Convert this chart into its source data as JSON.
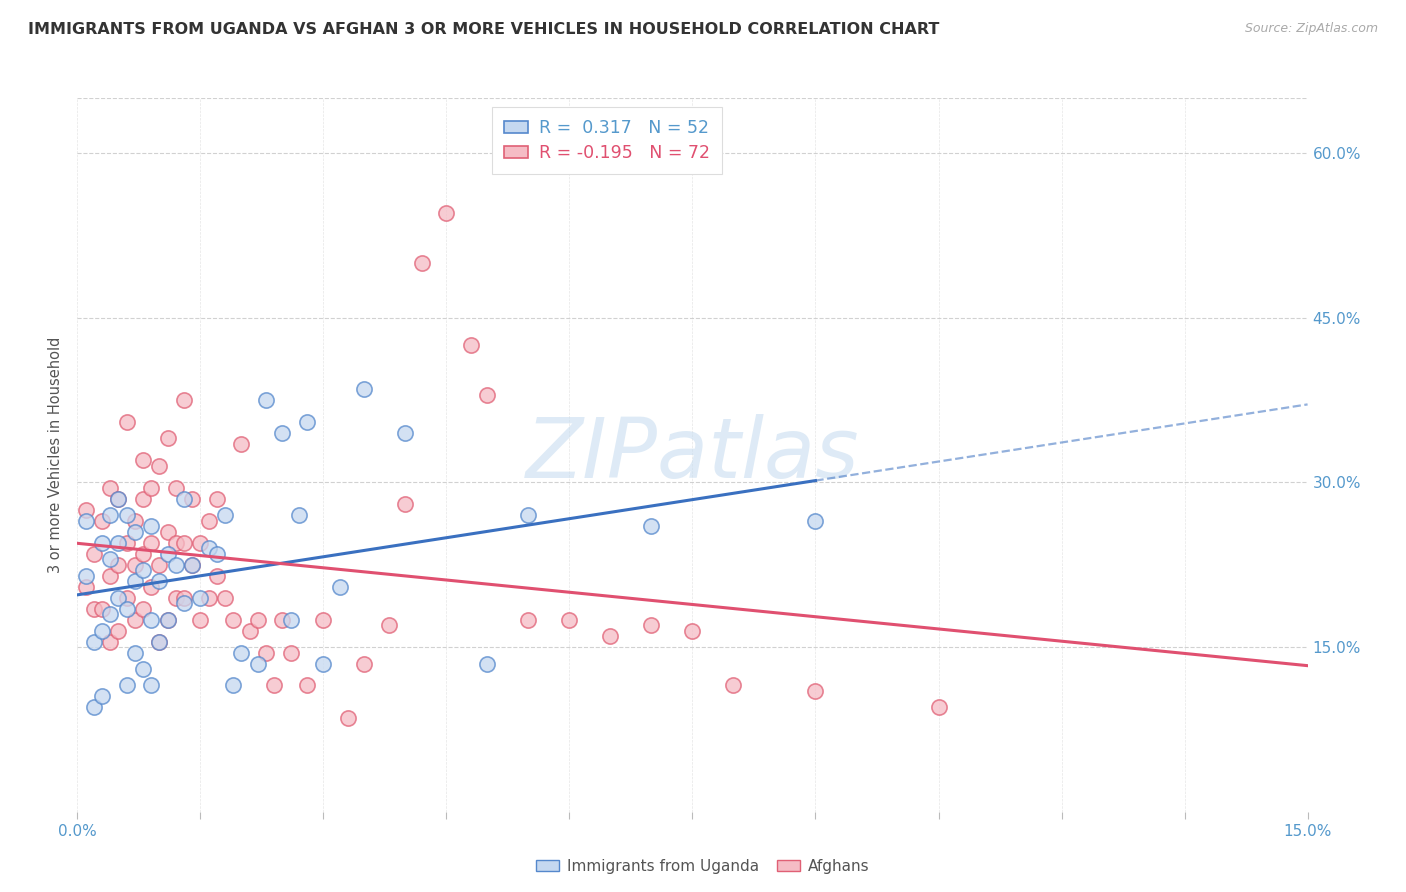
{
  "title": "IMMIGRANTS FROM UGANDA VS AFGHAN 3 OR MORE VEHICLES IN HOUSEHOLD CORRELATION CHART",
  "source": "Source: ZipAtlas.com",
  "ylabel": "3 or more Vehicles in Household",
  "yticks": [
    0.15,
    0.3,
    0.45,
    0.6
  ],
  "ytick_labels": [
    "15.0%",
    "30.0%",
    "45.0%",
    "60.0%"
  ],
  "xlim": [
    0.0,
    0.15
  ],
  "ylim": [
    0.0,
    0.65
  ],
  "r_uganda": "0.317",
  "n_uganda": "52",
  "r_afghan": "-0.195",
  "n_afghan": "72",
  "color_uganda_fill": "#c5d8f0",
  "color_uganda_edge": "#5588cc",
  "color_afghan_fill": "#f5bcc5",
  "color_afghan_edge": "#e06075",
  "line_color_uganda": "#3a70c0",
  "line_color_afghan": "#e05070",
  "axis_tick_color": "#5599cc",
  "title_color": "#333333",
  "source_color": "#aaaaaa",
  "grid_color": "#cccccc",
  "watermark_color": "#c8ddf0",
  "background_color": "#ffffff",
  "legend_label_uganda": "Immigrants from Uganda",
  "legend_label_afghan": "Afghans",
  "scatter_uganda_x": [
    0.001,
    0.001,
    0.002,
    0.002,
    0.003,
    0.003,
    0.003,
    0.004,
    0.004,
    0.004,
    0.005,
    0.005,
    0.005,
    0.006,
    0.006,
    0.006,
    0.007,
    0.007,
    0.007,
    0.008,
    0.008,
    0.009,
    0.009,
    0.009,
    0.01,
    0.01,
    0.011,
    0.011,
    0.012,
    0.013,
    0.013,
    0.014,
    0.015,
    0.016,
    0.017,
    0.018,
    0.019,
    0.02,
    0.022,
    0.023,
    0.025,
    0.026,
    0.027,
    0.028,
    0.03,
    0.032,
    0.035,
    0.04,
    0.05,
    0.055,
    0.07,
    0.09
  ],
  "scatter_uganda_y": [
    0.215,
    0.265,
    0.095,
    0.155,
    0.105,
    0.165,
    0.245,
    0.18,
    0.23,
    0.27,
    0.195,
    0.245,
    0.285,
    0.115,
    0.185,
    0.27,
    0.145,
    0.21,
    0.255,
    0.13,
    0.22,
    0.115,
    0.175,
    0.26,
    0.155,
    0.21,
    0.175,
    0.235,
    0.225,
    0.19,
    0.285,
    0.225,
    0.195,
    0.24,
    0.235,
    0.27,
    0.115,
    0.145,
    0.135,
    0.375,
    0.345,
    0.175,
    0.27,
    0.355,
    0.135,
    0.205,
    0.385,
    0.345,
    0.135,
    0.27,
    0.26,
    0.265
  ],
  "scatter_afghan_x": [
    0.001,
    0.001,
    0.002,
    0.002,
    0.003,
    0.003,
    0.004,
    0.004,
    0.004,
    0.005,
    0.005,
    0.005,
    0.006,
    0.006,
    0.006,
    0.007,
    0.007,
    0.007,
    0.008,
    0.008,
    0.008,
    0.008,
    0.009,
    0.009,
    0.009,
    0.01,
    0.01,
    0.01,
    0.011,
    0.011,
    0.011,
    0.012,
    0.012,
    0.012,
    0.013,
    0.013,
    0.013,
    0.014,
    0.014,
    0.015,
    0.015,
    0.016,
    0.016,
    0.017,
    0.017,
    0.018,
    0.019,
    0.02,
    0.021,
    0.022,
    0.023,
    0.024,
    0.025,
    0.026,
    0.028,
    0.03,
    0.033,
    0.035,
    0.038,
    0.04,
    0.042,
    0.045,
    0.048,
    0.05,
    0.055,
    0.06,
    0.065,
    0.07,
    0.075,
    0.08,
    0.09,
    0.105
  ],
  "scatter_afghan_y": [
    0.205,
    0.275,
    0.185,
    0.235,
    0.185,
    0.265,
    0.155,
    0.215,
    0.295,
    0.165,
    0.225,
    0.285,
    0.195,
    0.245,
    0.355,
    0.175,
    0.225,
    0.265,
    0.185,
    0.235,
    0.285,
    0.32,
    0.205,
    0.245,
    0.295,
    0.155,
    0.225,
    0.315,
    0.175,
    0.255,
    0.34,
    0.195,
    0.245,
    0.295,
    0.195,
    0.245,
    0.375,
    0.225,
    0.285,
    0.175,
    0.245,
    0.195,
    0.265,
    0.215,
    0.285,
    0.195,
    0.175,
    0.335,
    0.165,
    0.175,
    0.145,
    0.115,
    0.175,
    0.145,
    0.115,
    0.175,
    0.085,
    0.135,
    0.17,
    0.28,
    0.5,
    0.545,
    0.425,
    0.38,
    0.175,
    0.175,
    0.16,
    0.17,
    0.165,
    0.115,
    0.11,
    0.095
  ]
}
